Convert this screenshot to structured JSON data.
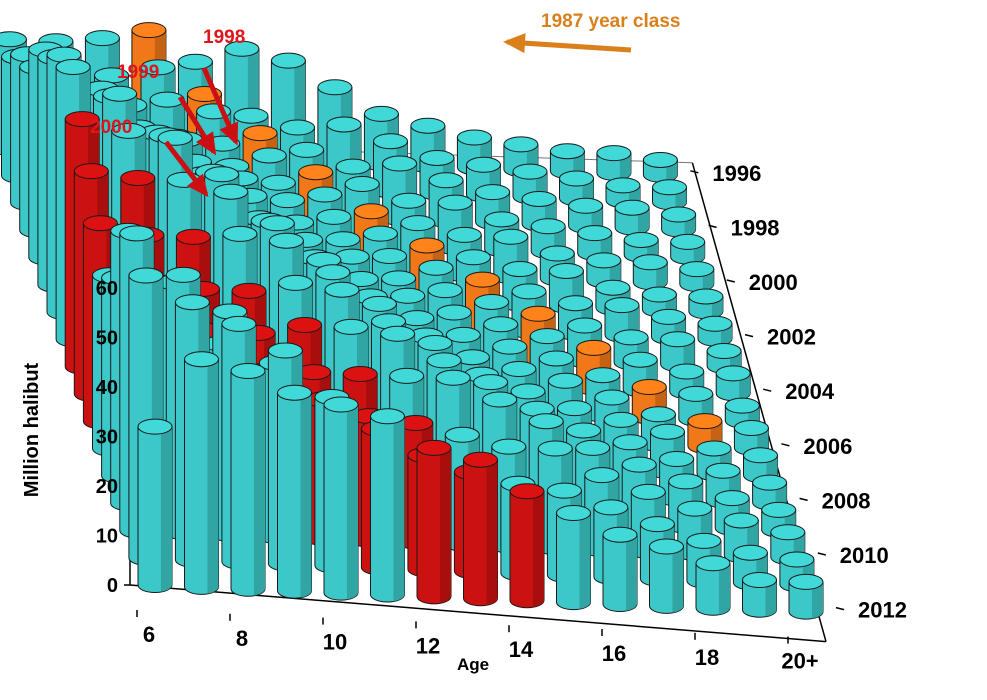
{
  "chart_data": {
    "type": "bar3d",
    "ylabel": "Million halibut",
    "xlabel": "Age",
    "zlim": [
      0,
      60
    ],
    "z_ticks": [
      "0",
      "10",
      "20",
      "30",
      "40",
      "50",
      "60"
    ],
    "ages": [
      "6",
      "7",
      "8",
      "9",
      "10",
      "11",
      "12",
      "13",
      "14",
      "15",
      "16",
      "17",
      "18",
      "19",
      "20+"
    ],
    "age_tick_labels": [
      "6",
      "8",
      "10",
      "12",
      "14",
      "16",
      "18",
      "20+"
    ],
    "years": [
      1996,
      1997,
      1998,
      1999,
      2000,
      2001,
      2002,
      2003,
      2004,
      2005,
      2006,
      2007,
      2008,
      2009,
      2010,
      2011,
      2012
    ],
    "year_tick_labels": [
      "1996",
      "1998",
      "2000",
      "2002",
      "2004",
      "2006",
      "2008",
      "2010",
      "2012"
    ],
    "colors": {
      "default": "#3cc8c8",
      "highlight_red": "#cc1111",
      "highlight_orange": "#f07818"
    },
    "highlighted_year_classes": [
      {
        "label": "1998",
        "birth_year": 1998,
        "color": "highlight_red"
      },
      {
        "label": "1999",
        "birth_year": 1999,
        "color": "highlight_red"
      },
      {
        "label": "2000",
        "birth_year": 2000,
        "color": "highlight_red"
      },
      {
        "label": "1987 year class",
        "birth_year": 1987,
        "color": "highlight_orange"
      }
    ],
    "values": [
      [
        22,
        22,
        23,
        25,
        19,
        22,
        20,
        15,
        10,
        8,
        6,
        5,
        4,
        4,
        3
      ],
      [
        24,
        22,
        21,
        23,
        18,
        14,
        12,
        13,
        10,
        7,
        6,
        5,
        4,
        3,
        3
      ],
      [
        30,
        24,
        21,
        22,
        20,
        16,
        13,
        10,
        11,
        8,
        6,
        5,
        4,
        4,
        3
      ],
      [
        33,
        28,
        26,
        20,
        19,
        17,
        14,
        12,
        9,
        9,
        6,
        5,
        4,
        3,
        3
      ],
      [
        42,
        30,
        27,
        25,
        20,
        17,
        15,
        12,
        10,
        8,
        8,
        5,
        4,
        4,
        3
      ],
      [
        46,
        40,
        30,
        26,
        23,
        19,
        16,
        13,
        11,
        9,
        7,
        7,
        4,
        3,
        3
      ],
      [
        52,
        44,
        37,
        29,
        25,
        20,
        17,
        14,
        12,
        10,
        8,
        6,
        6,
        4,
        3
      ],
      [
        55,
        50,
        42,
        35,
        26,
        22,
        19,
        15,
        13,
        11,
        9,
        7,
        5,
        5,
        3
      ],
      [
        50,
        48,
        47,
        40,
        31,
        24,
        20,
        17,
        14,
        12,
        10,
        8,
        6,
        4,
        4
      ],
      [
        45,
        44,
        44,
        42,
        36,
        29,
        22,
        18,
        15,
        13,
        11,
        8,
        6,
        5,
        3
      ],
      [
        40,
        38,
        38,
        39,
        38,
        32,
        26,
        20,
        16,
        14,
        12,
        9,
        6,
        5,
        4
      ],
      [
        35,
        34,
        33,
        33,
        35,
        34,
        28,
        24,
        18,
        15,
        12,
        10,
        8,
        5,
        4
      ],
      [
        40,
        35,
        30,
        30,
        32,
        32,
        31,
        26,
        22,
        17,
        13,
        11,
        8,
        6,
        4
      ],
      [
        55,
        45,
        33,
        28,
        28,
        28,
        28,
        28,
        24,
        20,
        15,
        12,
        9,
        6,
        4
      ],
      [
        60,
        52,
        45,
        35,
        28,
        25,
        24,
        22,
        20,
        20,
        15,
        12,
        9,
        7,
        5
      ],
      [
        57,
        52,
        48,
        43,
        34,
        28,
        23,
        20,
        18,
        17,
        14,
        11,
        8,
        6,
        5
      ],
      [
        32,
        46,
        44,
        40,
        38,
        36,
        30,
        28,
        22,
        18,
        14,
        12,
        9,
        6,
        6
      ]
    ],
    "annotations": {
      "label_1998": "1998",
      "label_1999": "1999",
      "label_2000": "2000",
      "label_1987": "1987 year class"
    }
  }
}
